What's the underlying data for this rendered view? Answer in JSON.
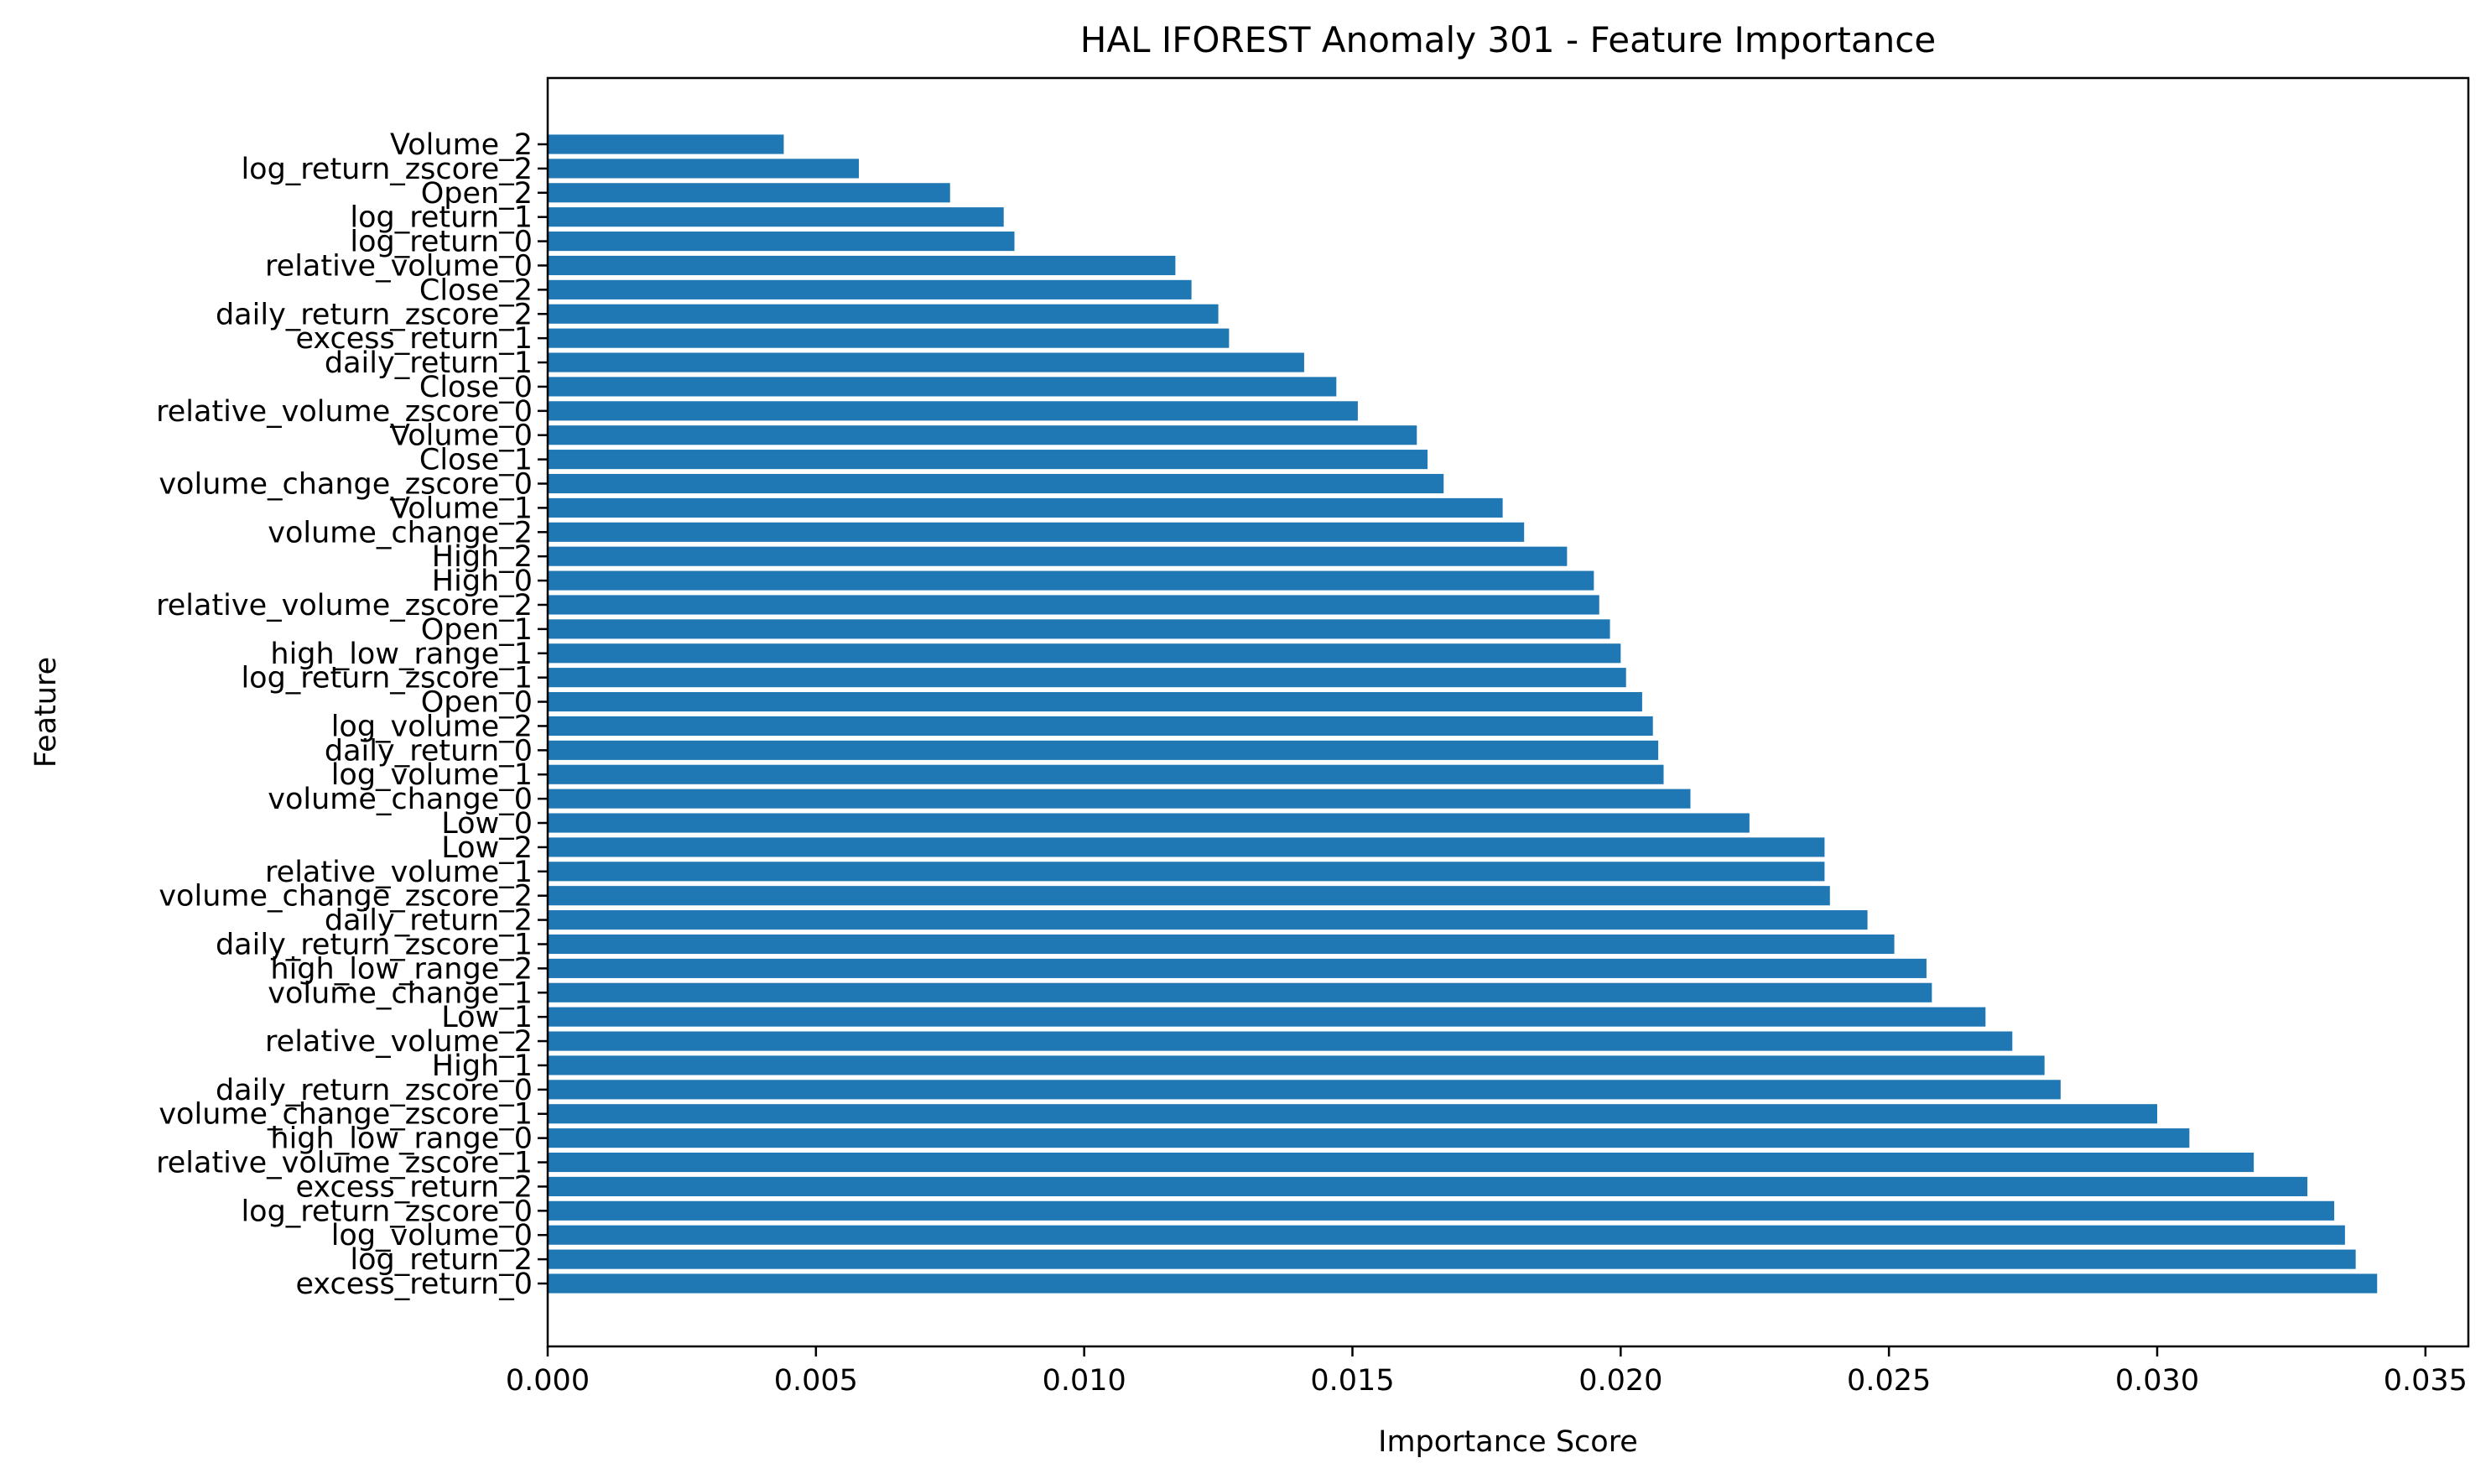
{
  "chart_data": {
    "type": "bar",
    "orientation": "horizontal",
    "title": "HAL IFOREST Anomaly 301 - Feature Importance",
    "xlabel": "Importance Score",
    "ylabel": "Feature",
    "xlim": [
      0,
      0.0358
    ],
    "xticks": [
      0.0,
      0.005,
      0.01,
      0.015,
      0.02,
      0.025,
      0.03,
      0.035
    ],
    "xtick_labels": [
      "0.000",
      "0.005",
      "0.010",
      "0.015",
      "0.020",
      "0.025",
      "0.030",
      "0.035"
    ],
    "grid": false,
    "bar_color": "#1f77b4",
    "categories": [
      "Volume_2",
      "log_return_zscore_2",
      "Open_2",
      "log_return_1",
      "log_return_0",
      "relative_volume_0",
      "Close_2",
      "daily_return_zscore_2",
      "excess_return_1",
      "daily_return_1",
      "Close_0",
      "relative_volume_zscore_0",
      "Volume_0",
      "Close_1",
      "volume_change_zscore_0",
      "Volume_1",
      "volume_change_2",
      "High_2",
      "High_0",
      "relative_volume_zscore_2",
      "Open_1",
      "high_low_range_1",
      "log_return_zscore_1",
      "Open_0",
      "log_volume_2",
      "daily_return_0",
      "log_volume_1",
      "volume_change_0",
      "Low_0",
      "Low_2",
      "relative_volume_1",
      "volume_change_zscore_2",
      "daily_return_2",
      "daily_return_zscore_1",
      "high_low_range_2",
      "volume_change_1",
      "Low_1",
      "relative_volume_2",
      "High_1",
      "daily_return_zscore_0",
      "volume_change_zscore_1",
      "high_low_range_0",
      "relative_volume_zscore_1",
      "excess_return_2",
      "log_return_zscore_0",
      "log_volume_0",
      "log_return_2",
      "excess_return_0"
    ],
    "values": [
      0.0044,
      0.0058,
      0.0075,
      0.0085,
      0.0087,
      0.0117,
      0.012,
      0.0125,
      0.0127,
      0.0141,
      0.0147,
      0.0151,
      0.0162,
      0.0164,
      0.0167,
      0.0178,
      0.0182,
      0.019,
      0.0195,
      0.0196,
      0.0198,
      0.02,
      0.0201,
      0.0204,
      0.0206,
      0.0207,
      0.0208,
      0.0213,
      0.0224,
      0.0238,
      0.0238,
      0.0239,
      0.0246,
      0.0251,
      0.0257,
      0.0258,
      0.0268,
      0.0273,
      0.0279,
      0.0282,
      0.03,
      0.0306,
      0.0318,
      0.0328,
      0.0333,
      0.0335,
      0.0337,
      0.0341
    ]
  }
}
